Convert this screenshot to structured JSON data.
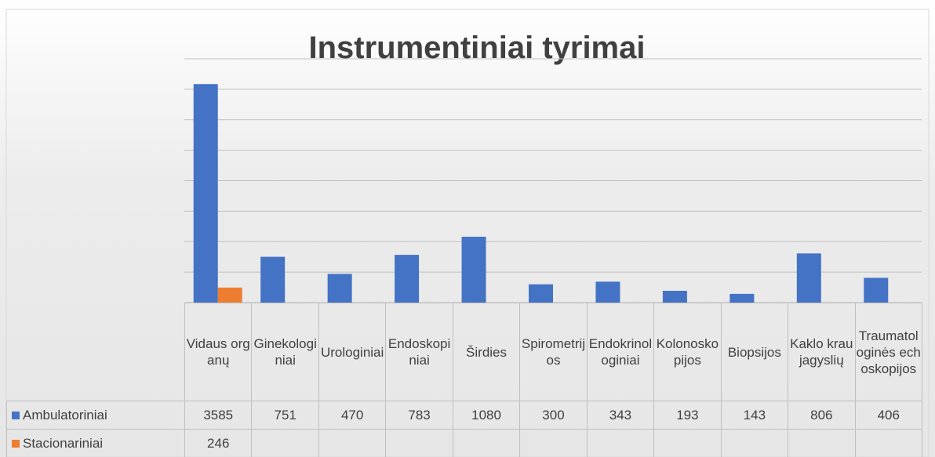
{
  "chart_data": {
    "type": "bar",
    "title": "Instrumentiniai tyrimai",
    "categories": [
      "Vidaus organų",
      "Ginekologiniai",
      "Urologiniai",
      "Endoskopiniai",
      "Širdies",
      "Spirometrijos",
      "Endokrinologiniai",
      "Kolonoskopijos",
      "Biopsijos",
      "Kaklo kraujagyslių",
      "Traumatologinės echoskopijos"
    ],
    "series": [
      {
        "name": "Ambulatoriniai",
        "color": "#4472c4",
        "values": [
          3585,
          751,
          470,
          783,
          1080,
          300,
          343,
          193,
          143,
          806,
          406
        ]
      },
      {
        "name": "Stacionariniai",
        "color": "#ed7d31",
        "values": [
          246,
          null,
          null,
          null,
          null,
          null,
          null,
          null,
          null,
          null,
          null
        ]
      }
    ],
    "ylim": [
      0,
      4000
    ],
    "yticks": [
      0,
      500,
      1000,
      1500,
      2000,
      2500,
      3000,
      3500,
      4000
    ],
    "grid": true
  }
}
